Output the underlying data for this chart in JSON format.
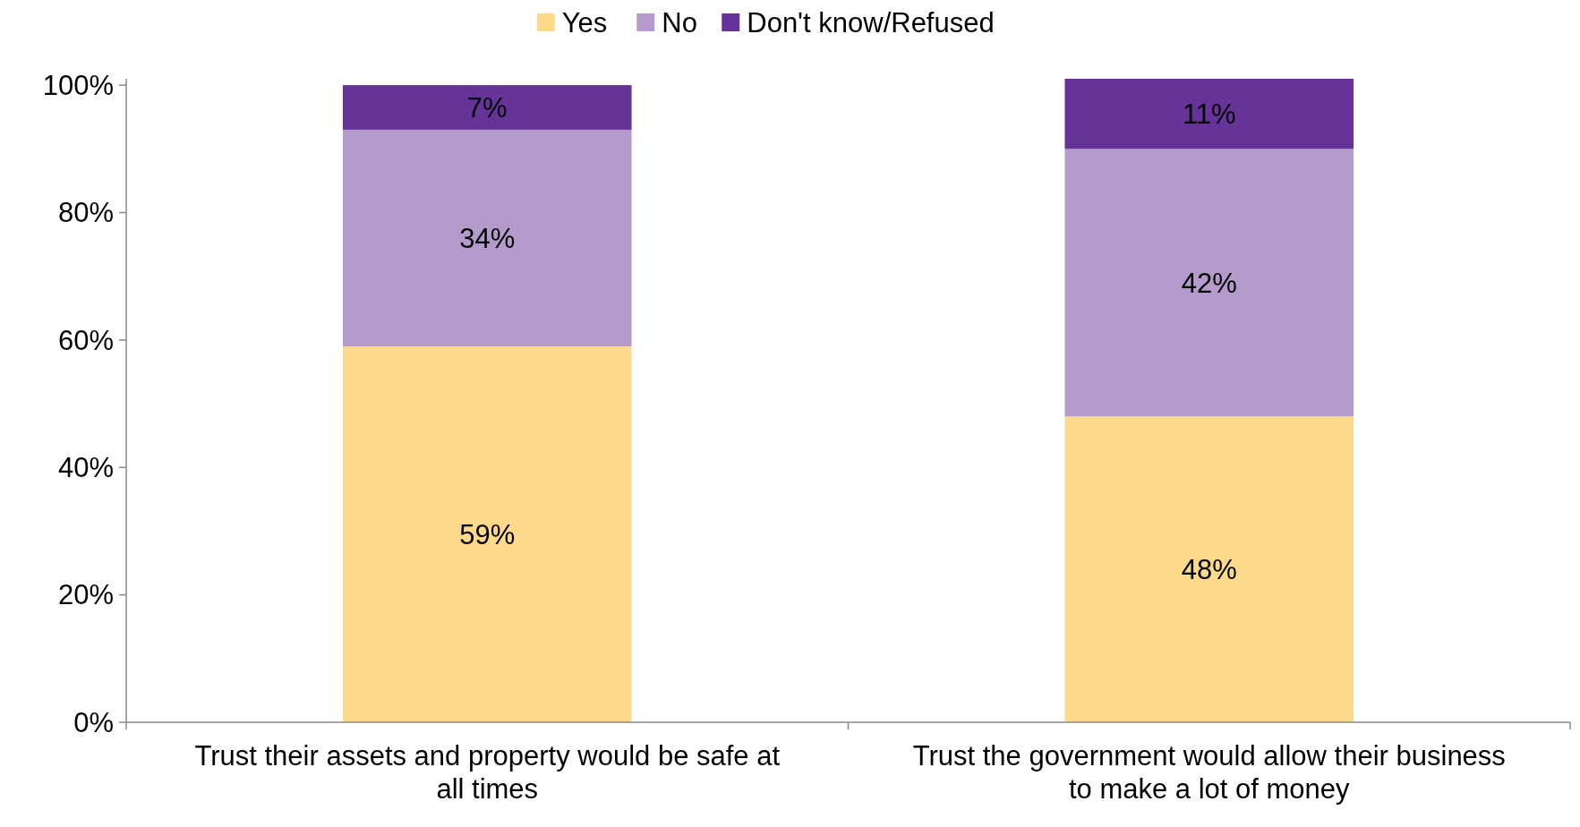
{
  "chart_data": {
    "type": "bar",
    "stacked": true,
    "categories": [
      "Trust their assets and property would be safe at all times",
      "Trust the government would allow their business to make a lot of money"
    ],
    "series": [
      {
        "name": "Yes",
        "color": "#fdd98b",
        "values": [
          59,
          48
        ],
        "value_labels": [
          "59%",
          "48%"
        ]
      },
      {
        "name": "No",
        "color": "#b49bcb",
        "values": [
          34,
          42
        ],
        "value_labels": [
          "34%",
          "42%"
        ]
      },
      {
        "name": "Don't know/Refused",
        "color": "#663399",
        "values": [
          7,
          11
        ],
        "value_labels": [
          "7%",
          "11%"
        ]
      }
    ],
    "ylim": [
      0,
      101
    ],
    "yticks": [
      {
        "value": 0,
        "label": "0%"
      },
      {
        "value": 20,
        "label": "20%"
      },
      {
        "value": 40,
        "label": "40%"
      },
      {
        "value": 60,
        "label": "60%"
      },
      {
        "value": 80,
        "label": "80%"
      },
      {
        "value": 100,
        "label": "100%"
      }
    ],
    "legend": "top",
    "grid": false
  }
}
